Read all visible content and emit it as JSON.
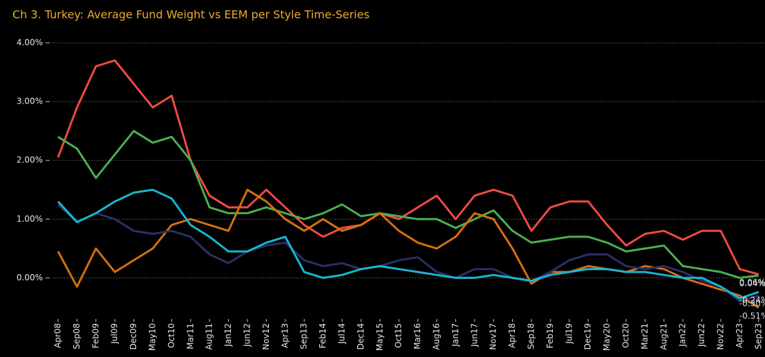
{
  "chart_data": {
    "type": "line",
    "title": "Ch 3. Turkey:  Average Fund Weight vs EEM per Style Time-Series",
    "categories": [
      "Apr08",
      "Sep08",
      "Feb09",
      "Jul09",
      "Dec09",
      "May10",
      "Oct10",
      "Mar11",
      "Aug11",
      "Jan12",
      "Jun12",
      "Nov12",
      "Apr13",
      "Sep13",
      "Feb14",
      "Jul14",
      "Dec14",
      "May15",
      "Oct15",
      "Mar16",
      "Aug16",
      "Jan17",
      "Jun17",
      "Nov17",
      "Apr18",
      "Sep18",
      "Feb19",
      "Jul19",
      "Dec19",
      "May20",
      "Oct20",
      "Mar21",
      "Aug21",
      "Jan22",
      "Jun22",
      "Nov22",
      "Apr23",
      "Sep23"
    ],
    "series": [
      {
        "color": "#ef4b43",
        "values": [
          2.05,
          2.9,
          3.6,
          3.7,
          3.3,
          2.9,
          3.1,
          2.0,
          1.4,
          1.2,
          1.2,
          1.5,
          1.2,
          0.9,
          0.7,
          0.85,
          0.9,
          1.1,
          1.0,
          1.2,
          1.4,
          1.0,
          1.4,
          1.5,
          1.4,
          0.8,
          1.2,
          1.3,
          1.3,
          0.9,
          0.55,
          0.75,
          0.8,
          0.65,
          0.8,
          0.8,
          0.15,
          0.06
        ],
        "value_labels": [
          null,
          null,
          null,
          null,
          null,
          null,
          null,
          null,
          null,
          null,
          null,
          null,
          null,
          null,
          null,
          null,
          null,
          null,
          null,
          null,
          null,
          null,
          null,
          null,
          null,
          null,
          null,
          null,
          null,
          null,
          null,
          null,
          null,
          null,
          null,
          null,
          null,
          "0.06%"
        ]
      },
      {
        "color": "#4caf50",
        "values": [
          2.4,
          2.2,
          1.7,
          2.1,
          2.5,
          2.3,
          2.4,
          2.0,
          1.2,
          1.1,
          1.1,
          1.2,
          1.1,
          1.0,
          1.1,
          1.25,
          1.05,
          1.1,
          1.05,
          1.0,
          1.0,
          0.85,
          1.0,
          1.15,
          0.8,
          0.6,
          0.65,
          0.7,
          0.7,
          0.6,
          0.45,
          0.5,
          0.55,
          0.2,
          0.15,
          0.1,
          0.0,
          0.04
        ],
        "value_labels": [
          null,
          null,
          null,
          null,
          null,
          null,
          null,
          null,
          null,
          null,
          null,
          null,
          null,
          null,
          null,
          null,
          null,
          null,
          null,
          null,
          null,
          null,
          null,
          null,
          null,
          null,
          null,
          null,
          null,
          null,
          null,
          null,
          null,
          null,
          null,
          null,
          null,
          "0.04%"
        ]
      },
      {
        "color": "#d4700f",
        "values": [
          0.45,
          -0.15,
          0.5,
          0.1,
          0.3,
          0.5,
          0.9,
          1.0,
          0.9,
          0.8,
          1.5,
          1.3,
          1.0,
          0.8,
          1.0,
          0.8,
          0.9,
          1.1,
          0.8,
          0.6,
          0.5,
          0.7,
          1.1,
          1.0,
          0.5,
          -0.1,
          0.1,
          0.1,
          0.2,
          0.15,
          0.1,
          0.2,
          0.15,
          0.0,
          -0.1,
          -0.2,
          -0.3,
          -0.51
        ],
        "value_labels": [
          null,
          null,
          null,
          null,
          null,
          null,
          null,
          null,
          null,
          null,
          null,
          null,
          null,
          null,
          null,
          null,
          null,
          null,
          null,
          null,
          null,
          null,
          null,
          null,
          null,
          null,
          null,
          null,
          null,
          null,
          null,
          null,
          null,
          null,
          null,
          null,
          null,
          "-0.51%"
        ]
      },
      {
        "color": "#2c2f66",
        "values": [
          1.25,
          0.95,
          1.1,
          1.0,
          0.8,
          0.75,
          0.8,
          0.7,
          0.4,
          0.25,
          0.45,
          0.55,
          0.6,
          0.3,
          0.2,
          0.25,
          0.15,
          0.2,
          0.3,
          0.35,
          0.1,
          0.0,
          0.15,
          0.15,
          0.0,
          -0.05,
          0.1,
          0.3,
          0.4,
          0.4,
          0.2,
          0.15,
          0.2,
          0.1,
          -0.05,
          -0.15,
          -0.4,
          -0.3
        ],
        "value_labels": [
          null,
          null,
          null,
          null,
          null,
          null,
          null,
          null,
          null,
          null,
          null,
          null,
          null,
          null,
          null,
          null,
          null,
          null,
          null,
          null,
          null,
          null,
          null,
          null,
          null,
          null,
          null,
          null,
          null,
          null,
          null,
          null,
          null,
          null,
          null,
          null,
          null,
          "-0.30%"
        ]
      },
      {
        "color": "#19b6d0",
        "values": [
          1.3,
          0.95,
          1.1,
          1.3,
          1.45,
          1.5,
          1.35,
          0.9,
          0.7,
          0.45,
          0.45,
          0.6,
          0.7,
          0.1,
          0.0,
          0.05,
          0.15,
          0.2,
          0.15,
          0.1,
          0.05,
          0.0,
          0.0,
          0.05,
          0.0,
          -0.05,
          0.05,
          0.1,
          0.15,
          0.15,
          0.1,
          0.1,
          0.05,
          0.0,
          0.0,
          -0.15,
          -0.35,
          -0.24
        ],
        "value_labels": [
          null,
          null,
          null,
          null,
          null,
          null,
          null,
          null,
          null,
          null,
          null,
          null,
          null,
          null,
          null,
          null,
          null,
          null,
          null,
          null,
          null,
          null,
          null,
          null,
          null,
          null,
          null,
          null,
          null,
          null,
          null,
          null,
          null,
          null,
          null,
          null,
          null,
          "-0.24%"
        ]
      }
    ],
    "ylim": [
      -0.7,
      4.0
    ],
    "yticks": [
      {
        "value": 0,
        "label": "0.00%"
      },
      {
        "value": 1,
        "label": "1.00%"
      },
      {
        "value": 2,
        "label": "2.00%"
      },
      {
        "value": 3,
        "label": "3.00%"
      },
      {
        "value": 4,
        "label": "4.00%"
      }
    ],
    "grid": true
  }
}
